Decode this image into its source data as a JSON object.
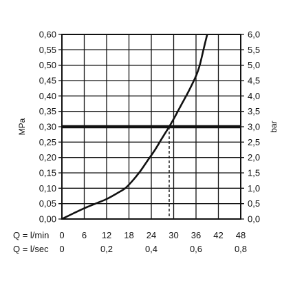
{
  "chart_data": {
    "type": "line",
    "title": "",
    "ylabel_left": "MPa",
    "ylabel_right": "bar",
    "y_left_ticks": [
      "0,00",
      "0,05",
      "0,10",
      "0,15",
      "0,20",
      "0,25",
      "0,30",
      "0,35",
      "0,40",
      "0,45",
      "0,50",
      "0,55",
      "0,60"
    ],
    "y_right_ticks": [
      "0,0",
      "0,5",
      "1,0",
      "1,5",
      "2,0",
      "2,5",
      "3,0",
      "3,5",
      "4,0",
      "4,5",
      "5,0",
      "5,5",
      "6,0"
    ],
    "ylim": [
      0,
      0.6
    ],
    "x_axes": [
      {
        "label": "Q = l/min",
        "ticks": [
          "0",
          "6",
          "12",
          "18",
          "24",
          "30",
          "36",
          "42",
          "48"
        ],
        "values": [
          0,
          6,
          12,
          18,
          24,
          30,
          36,
          42,
          48
        ]
      },
      {
        "label": "Q = l/sec",
        "ticks": [
          "0",
          "0,2",
          "0,4",
          "0,6",
          "0,8"
        ],
        "values": [
          0,
          0.2,
          0.4,
          0.6,
          0.8
        ]
      }
    ],
    "xlim": [
      0,
      48
    ],
    "grid": true,
    "series": [
      {
        "x": [
          0,
          3,
          6,
          9,
          12,
          15,
          17,
          19,
          21,
          23,
          25,
          27,
          28.8,
          30,
          32,
          34,
          36,
          37,
          38,
          39
        ],
        "y": [
          0.0,
          0.018,
          0.035,
          0.05,
          0.065,
          0.085,
          0.1,
          0.125,
          0.155,
          0.19,
          0.225,
          0.265,
          0.3,
          0.325,
          0.37,
          0.415,
          0.465,
          0.5,
          0.55,
          0.6
        ]
      }
    ],
    "reference_line": {
      "y": 0.3,
      "x_intersect": 28.8
    }
  }
}
